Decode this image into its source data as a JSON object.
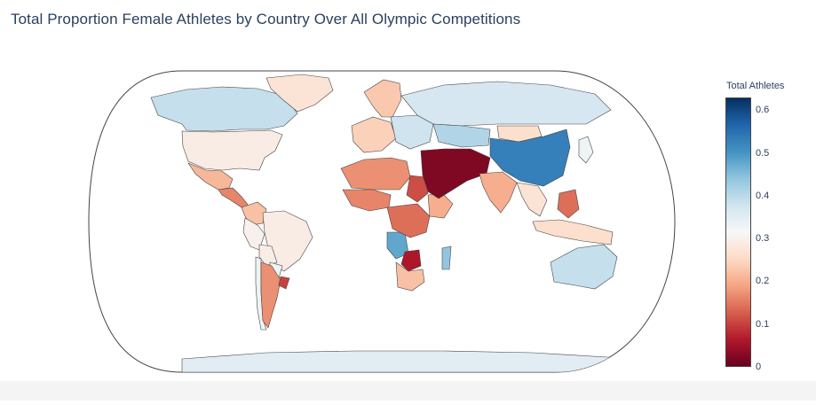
{
  "title": "Total Proportion Female Athletes by Country Over All Olympic Competitions",
  "colorbar": {
    "title": "Total Athletes",
    "min": 0,
    "max": 0.63,
    "ticks": [
      "0",
      "0.1",
      "0.2",
      "0.3",
      "0.4",
      "0.5",
      "0.6"
    ],
    "tick_values": [
      0,
      0.1,
      0.2,
      0.3,
      0.4,
      0.5,
      0.6
    ],
    "colorscale": [
      "#67001f",
      "#b2182b",
      "#d6604d",
      "#f4a582",
      "#fddbc7",
      "#f7f7f7",
      "#d1e5f0",
      "#92c5de",
      "#4393c3",
      "#2166ac",
      "#053061"
    ]
  },
  "chart_data": {
    "type": "choropleth",
    "projection": "natural earth",
    "value_label": "Total Athletes",
    "regions": [
      {
        "name": "Canada",
        "value": 0.39
      },
      {
        "name": "United States",
        "value": 0.29
      },
      {
        "name": "Mexico",
        "value": 0.21
      },
      {
        "name": "Central America",
        "value": 0.16
      },
      {
        "name": "Greenland",
        "value": 0.27
      },
      {
        "name": "Colombia",
        "value": 0.22
      },
      {
        "name": "Brazil",
        "value": 0.29
      },
      {
        "name": "Peru",
        "value": 0.3
      },
      {
        "name": "Bolivia",
        "value": 0.29
      },
      {
        "name": "Paraguay",
        "value": 0.33
      },
      {
        "name": "Chile",
        "value": 0.33
      },
      {
        "name": "Argentina",
        "value": 0.17
      },
      {
        "name": "Uruguay",
        "value": 0.1
      },
      {
        "name": "Western Europe",
        "value": 0.24
      },
      {
        "name": "Scandinavia",
        "value": 0.23
      },
      {
        "name": "Eastern Europe",
        "value": 0.38
      },
      {
        "name": "Russia",
        "value": 0.37
      },
      {
        "name": "Kazakhstan",
        "value": 0.41
      },
      {
        "name": "Mongolia",
        "value": 0.26
      },
      {
        "name": "China",
        "value": 0.53
      },
      {
        "name": "Japan",
        "value": 0.33
      },
      {
        "name": "North Africa",
        "value": 0.17
      },
      {
        "name": "West Africa",
        "value": 0.16
      },
      {
        "name": "Sudan",
        "value": 0.11
      },
      {
        "name": "Ethiopia",
        "value": 0.2
      },
      {
        "name": "Angola",
        "value": 0.48
      },
      {
        "name": "Central Africa",
        "value": 0.14
      },
      {
        "name": "Southern Africa",
        "value": 0.22
      },
      {
        "name": "Zimbabwe",
        "value": 0.06
      },
      {
        "name": "Madagascar",
        "value": 0.44
      },
      {
        "name": "Middle East",
        "value": 0.02
      },
      {
        "name": "India",
        "value": 0.2
      },
      {
        "name": "Southeast Asia",
        "value": 0.27
      },
      {
        "name": "Philippines",
        "value": 0.14
      },
      {
        "name": "Indonesia",
        "value": 0.26
      },
      {
        "name": "Australia",
        "value": 0.39
      },
      {
        "name": "Antarctica",
        "value": 0.35
      }
    ]
  }
}
